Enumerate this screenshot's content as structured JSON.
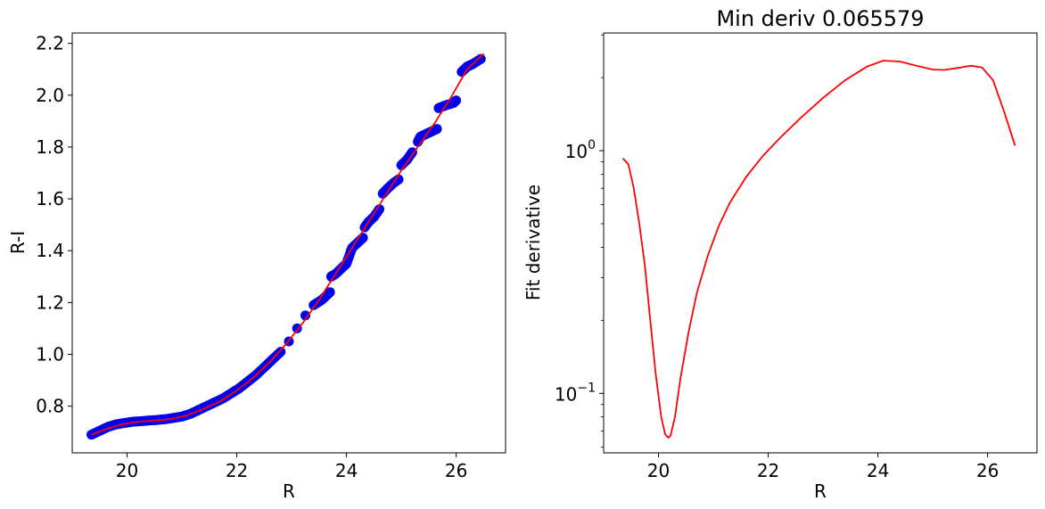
{
  "chart_data": [
    {
      "type": "scatter",
      "title": "",
      "xlabel": "R",
      "ylabel": "R-I",
      "xlim": [
        19.0,
        26.9
      ],
      "ylim": [
        0.62,
        2.24
      ],
      "xticks": [
        20,
        22,
        24,
        26
      ],
      "xtick_labels": [
        "20",
        "22",
        "24",
        "26"
      ],
      "yticks": [
        0.8,
        1.0,
        1.2,
        1.4,
        1.6,
        1.8,
        2.0,
        2.2
      ],
      "ytick_labels": [
        "0.8",
        "1.0",
        "1.2",
        "1.4",
        "1.6",
        "1.8",
        "2.0",
        "2.2"
      ],
      "grid": false,
      "colors": {
        "points": "#0000ee",
        "fit": "#ff0000"
      },
      "series": [
        {
          "kind": "points",
          "segments": [
            {
              "x": [
                19.35,
                26.5
              ],
              "y_start": 0.69
            }
          ],
          "x": [
            19.35,
            19.5,
            19.65,
            19.8,
            19.95,
            20.1,
            20.25,
            20.4,
            20.55,
            20.7,
            20.85,
            21.0,
            21.15,
            21.3,
            21.45,
            21.6,
            21.75,
            21.9,
            22.05,
            22.2,
            22.35,
            22.5,
            22.65,
            22.8,
            22.95,
            23.1,
            23.25,
            23.4,
            23.55,
            23.7,
            23.72,
            23.8,
            23.9,
            24.0,
            24.05,
            24.1,
            24.2,
            24.3,
            24.33,
            24.4,
            24.5,
            24.6,
            24.66,
            24.75,
            24.85,
            24.95,
            25.0,
            25.1,
            25.2,
            25.3,
            25.35,
            25.45,
            25.55,
            25.65,
            25.68,
            25.8,
            25.95,
            26.0,
            26.1,
            26.2,
            26.3,
            26.45
          ],
          "y": [
            0.69,
            0.705,
            0.72,
            0.73,
            0.735,
            0.74,
            0.742,
            0.745,
            0.747,
            0.75,
            0.755,
            0.76,
            0.77,
            0.785,
            0.8,
            0.815,
            0.83,
            0.85,
            0.87,
            0.895,
            0.92,
            0.95,
            0.98,
            1.01,
            1.05,
            1.1,
            1.15,
            1.19,
            1.21,
            1.24,
            1.3,
            1.31,
            1.33,
            1.35,
            1.38,
            1.41,
            1.43,
            1.45,
            1.49,
            1.51,
            1.53,
            1.56,
            1.62,
            1.64,
            1.66,
            1.675,
            1.73,
            1.75,
            1.78,
            1.82,
            1.84,
            1.85,
            1.86,
            1.87,
            1.95,
            1.96,
            1.97,
            1.98,
            2.09,
            2.11,
            2.12,
            2.14
          ]
        },
        {
          "kind": "line",
          "x": [
            19.35,
            19.6,
            19.9,
            20.2,
            20.5,
            20.8,
            21.1,
            21.4,
            21.7,
            22.0,
            22.3,
            22.6,
            22.9,
            23.2,
            23.5,
            23.8,
            24.1,
            24.4,
            24.7,
            25.0,
            25.3,
            25.6,
            25.9,
            26.2,
            26.5
          ],
          "y": [
            0.69,
            0.71,
            0.73,
            0.74,
            0.745,
            0.75,
            0.765,
            0.79,
            0.82,
            0.86,
            0.91,
            0.97,
            1.04,
            1.12,
            1.21,
            1.31,
            1.41,
            1.51,
            1.61,
            1.71,
            1.8,
            1.89,
            1.99,
            2.1,
            2.16
          ]
        }
      ]
    },
    {
      "type": "line",
      "title": "Min deriv 0.065579",
      "xlabel": "R",
      "ylabel": "Fit derivative",
      "xlim": [
        19.0,
        26.9
      ],
      "ylim_log10": [
        -1.245,
        0.485
      ],
      "yscale": "log",
      "xticks": [
        20,
        22,
        24,
        26
      ],
      "xtick_labels": [
        "20",
        "22",
        "24",
        "26"
      ],
      "yticks": [
        0.1,
        1.0
      ],
      "ytick_labels": [
        {
          "base": "10",
          "exp": "−1"
        },
        {
          "base": "10",
          "exp": "0"
        }
      ],
      "grid": false,
      "colors": {
        "fit": "#ff0000"
      },
      "series": [
        {
          "kind": "line",
          "x": [
            19.35,
            19.45,
            19.55,
            19.65,
            19.75,
            19.85,
            19.95,
            20.05,
            20.12,
            20.18,
            20.22,
            20.3,
            20.4,
            20.55,
            20.7,
            20.9,
            21.1,
            21.3,
            21.6,
            21.9,
            22.2,
            22.6,
            23.0,
            23.4,
            23.8,
            24.1,
            24.4,
            24.7,
            25.0,
            25.2,
            25.5,
            25.7,
            25.9,
            26.1,
            26.3,
            26.5
          ],
          "y": [
            0.93,
            0.88,
            0.7,
            0.5,
            0.34,
            0.2,
            0.12,
            0.08,
            0.068,
            0.0656,
            0.067,
            0.08,
            0.115,
            0.18,
            0.26,
            0.37,
            0.49,
            0.61,
            0.78,
            0.95,
            1.12,
            1.37,
            1.65,
            1.95,
            2.22,
            2.35,
            2.33,
            2.24,
            2.16,
            2.15,
            2.2,
            2.24,
            2.2,
            1.95,
            1.45,
            1.05
          ]
        }
      ]
    }
  ]
}
